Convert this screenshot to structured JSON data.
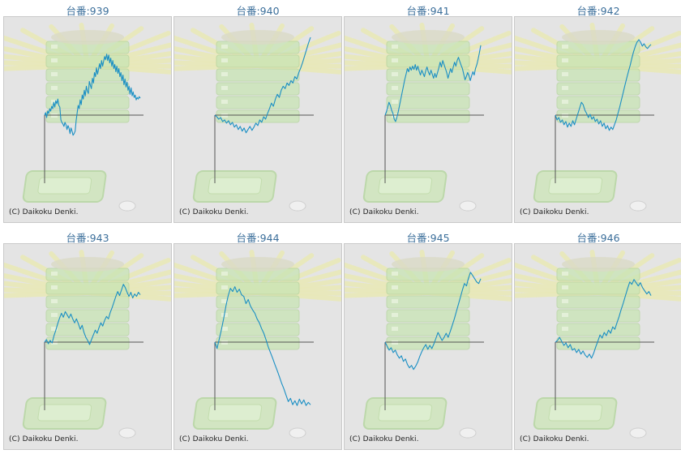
{
  "title_prefix": "台番:",
  "copyright": "(C) Daikoku Denki.",
  "colors": {
    "line": "#1a8fc4",
    "axis": "#555555",
    "background": "#e4e4e4",
    "title": "#3a6e9a"
  },
  "chart_data": [
    {
      "type": "line",
      "title": "台番:939",
      "y": [
        0,
        0.3,
        -0.3,
        0.5,
        0.2,
        0.8,
        0.5,
        1.1,
        0.8,
        1.6,
        1.0,
        1.8,
        1.4,
        2.0,
        1.2,
        1.0,
        -0.6,
        -0.9,
        -1.1,
        -1.4,
        -0.9,
        -1.2,
        -1.8,
        -1.3,
        -1.6,
        -2.3,
        -1.6,
        -2.0,
        -2.5,
        -2.3,
        -2.0,
        -0.7,
        0.3,
        1.2,
        0.8,
        1.9,
        1.3,
        2.5,
        2.0,
        3.1,
        2.4,
        3.6,
        3.0,
        2.7,
        4.2,
        3.7,
        3.3,
        4.6,
        4.0,
        5.3,
        4.8,
        5.9,
        5.1,
        5.7,
        6.4,
        5.8,
        6.8,
        6.1,
        6.7,
        7.3,
        6.9,
        7.6,
        6.8,
        7.5,
        6.5,
        7.1,
        6.1,
        6.8,
        5.8,
        6.3,
        5.4,
        6.1,
        5.2,
        5.8,
        4.8,
        5.3,
        4.3,
        5.0,
        3.8,
        4.5,
        3.5,
        4.1,
        3.1,
        3.6,
        2.6,
        3.4,
        2.4,
        2.9,
        2.2,
        2.5,
        1.9,
        2.2,
        2.0,
        2.3,
        2.1
      ]
    },
    {
      "type": "line",
      "title": "台番:940",
      "y": [
        0,
        -0.2,
        -0.5,
        -0.3,
        -0.8,
        -0.6,
        -1.0,
        -0.7,
        -1.2,
        -0.9,
        -1.5,
        -1.2,
        -1.8,
        -1.4,
        -2.0,
        -1.6,
        -2.2,
        -1.8,
        -1.4,
        -1.9,
        -1.5,
        -1.0,
        -1.3,
        -0.6,
        -0.9,
        -0.2,
        -0.5,
        0.2,
        0.8,
        1.5,
        1.1,
        2.0,
        2.6,
        2.2,
        3.1,
        3.6,
        3.3,
        4.0,
        3.7,
        4.3,
        4.0,
        4.8,
        4.5,
        5.3,
        5.9,
        6.6,
        7.4,
        8.2,
        9.0,
        9.7
      ]
    },
    {
      "type": "line",
      "title": "台番:941",
      "y": [
        0,
        0.4,
        1.0,
        1.6,
        1.2,
        0.6,
        0.2,
        -0.5,
        -0.8,
        -0.3,
        0.4,
        1.2,
        2.0,
        2.8,
        3.6,
        4.4,
        5.1,
        5.8,
        5.4,
        6.0,
        5.6,
        6.1,
        5.7,
        6.3,
        5.6,
        6.1,
        5.5,
        5.0,
        5.6,
        5.2,
        4.8,
        5.5,
        6.0,
        5.4,
        5.0,
        5.6,
        5.1,
        4.6,
        5.2,
        4.7,
        5.3,
        5.9,
        6.6,
        6.0,
        6.8,
        6.3,
        5.8,
        5.3,
        4.6,
        5.2,
        5.8,
        5.3,
        6.0,
        6.6,
        6.1,
        6.8,
        7.2,
        6.7,
        6.2,
        5.8,
        5.1,
        4.4,
        4.8,
        5.3,
        4.9,
        4.3,
        4.9,
        5.4,
        5.0,
        5.8,
        6.3,
        7.0,
        7.8,
        8.7
      ]
    },
    {
      "type": "line",
      "title": "台番:942",
      "y": [
        0,
        -0.6,
        -0.3,
        -0.9,
        -0.6,
        -1.2,
        -0.8,
        -1.5,
        -1.0,
        -1.4,
        -0.7,
        -1.2,
        -0.5,
        0.2,
        0.9,
        1.6,
        1.3,
        0.6,
        0.2,
        -0.3,
        0.1,
        -0.5,
        -0.2,
        -0.8,
        -0.5,
        -1.1,
        -0.7,
        -1.4,
        -1.0,
        -1.7,
        -1.3,
        -1.9,
        -1.5,
        -1.8,
        -1.2,
        -0.6,
        0.2,
        1.0,
        1.9,
        2.8,
        3.7,
        4.6,
        5.4,
        6.2,
        7.1,
        7.9,
        8.6,
        9.1,
        9.4,
        9.1,
        8.6,
        8.9,
        8.5,
        8.3,
        8.6,
        8.8
      ]
    },
    {
      "type": "line",
      "title": "台番:943",
      "y": [
        0,
        0.3,
        -0.2,
        0.2,
        -0.1,
        0.8,
        1.5,
        2.3,
        3.0,
        3.6,
        3.1,
        3.8,
        3.4,
        3.0,
        3.5,
        2.9,
        2.4,
        2.9,
        2.3,
        1.6,
        2.1,
        1.2,
        0.6,
        0.2,
        -0.3,
        0.3,
        0.9,
        1.5,
        1.1,
        1.8,
        2.4,
        2.0,
        2.7,
        3.2,
        2.9,
        3.7,
        4.3,
        5.0,
        5.7,
        6.3,
        5.8,
        6.5,
        7.2,
        6.8,
        6.2,
        5.7,
        6.2,
        5.5,
        6.0,
        5.7,
        6.2,
        5.9
      ]
    },
    {
      "type": "line",
      "title": "台番:944",
      "y": [
        0,
        -0.8,
        0.4,
        1.6,
        3.0,
        4.5,
        5.8,
        6.7,
        6.3,
        6.9,
        6.2,
        6.6,
        5.9,
        5.7,
        4.8,
        5.3,
        4.5,
        4.0,
        3.6,
        2.9,
        2.4,
        1.7,
        1.1,
        0.3,
        -0.6,
        -1.3,
        -2.0,
        -2.8,
        -3.5,
        -4.3,
        -5.1,
        -5.8,
        -6.6,
        -7.4,
        -7.0,
        -7.8,
        -7.3,
        -7.9,
        -7.1,
        -7.7,
        -7.2,
        -7.9,
        -7.5,
        -7.8
      ]
    },
    {
      "type": "line",
      "title": "台番:945",
      "y": [
        0,
        -0.5,
        -1.0,
        -0.7,
        -1.3,
        -1.0,
        -1.6,
        -2.0,
        -1.7,
        -2.4,
        -2.1,
        -2.8,
        -3.2,
        -2.9,
        -3.4,
        -3.0,
        -2.5,
        -1.8,
        -1.2,
        -0.7,
        -0.3,
        -0.9,
        -0.4,
        -0.8,
        -0.2,
        0.5,
        1.2,
        0.7,
        0.2,
        0.6,
        1.1,
        0.6,
        1.3,
        2.1,
        2.9,
        3.8,
        4.7,
        5.6,
        6.5,
        7.3,
        7.0,
        8.0,
        8.7,
        8.3,
        7.9,
        7.5,
        7.3,
        7.9
      ]
    },
    {
      "type": "line",
      "title": "台番:946",
      "y": [
        0,
        0.2,
        0.6,
        0.1,
        -0.4,
        -0.1,
        -0.7,
        -0.3,
        -1.0,
        -0.8,
        -1.3,
        -0.9,
        -1.5,
        -1.1,
        -1.6,
        -1.9,
        -1.5,
        -2.0,
        -1.4,
        -0.6,
        0.1,
        0.9,
        0.5,
        1.2,
        0.8,
        1.5,
        1.1,
        1.9,
        1.6,
        2.4,
        3.2,
        4.1,
        4.9,
        5.8,
        6.7,
        7.5,
        7.2,
        7.8,
        7.4,
        7.0,
        7.4,
        6.8,
        6.4,
        6.0,
        6.3,
        5.8
      ]
    }
  ]
}
